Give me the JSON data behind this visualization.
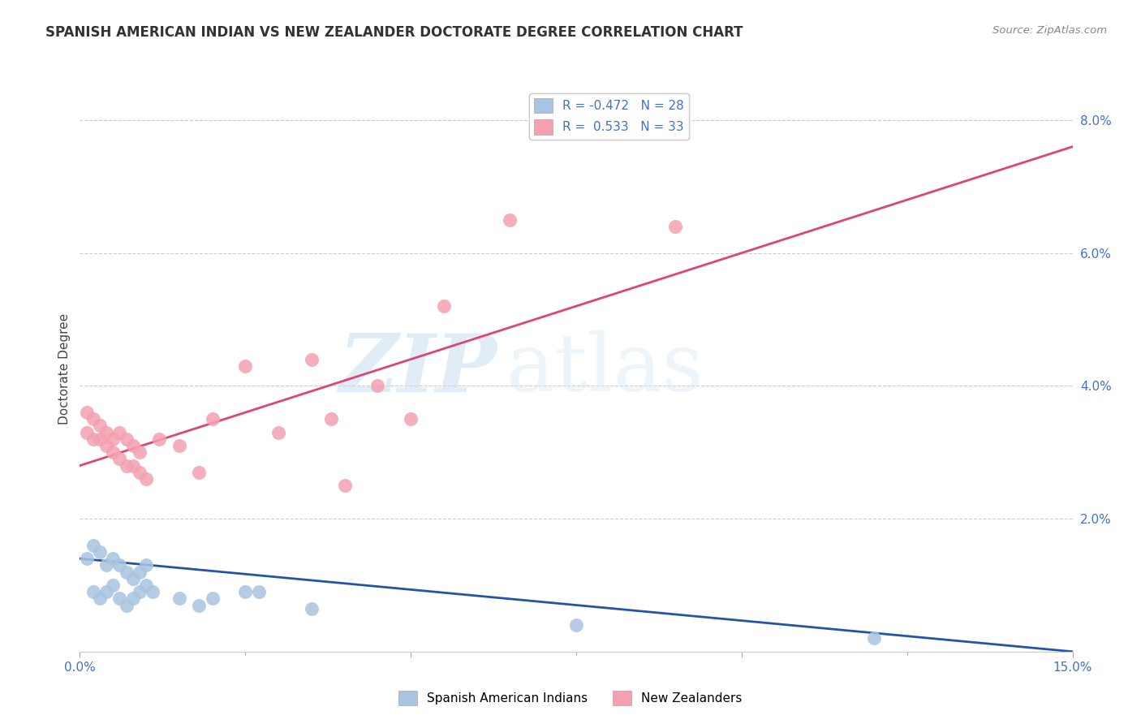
{
  "title": "SPANISH AMERICAN INDIAN VS NEW ZEALANDER DOCTORATE DEGREE CORRELATION CHART",
  "source": "Source: ZipAtlas.com",
  "ylabel": "Doctorate Degree",
  "xlim": [
    0.0,
    0.15
  ],
  "ylim": [
    0.0,
    0.085
  ],
  "xticks": [
    0.0,
    0.05,
    0.1,
    0.15
  ],
  "xtick_labels": [
    "0.0%",
    "",
    "",
    "15.0%"
  ],
  "yticks": [
    0.0,
    0.02,
    0.04,
    0.06,
    0.08
  ],
  "ytick_labels_right": [
    "",
    "2.0%",
    "4.0%",
    "6.0%",
    "8.0%"
  ],
  "legend_R1": "-0.472",
  "legend_N1": "28",
  "legend_R2": "0.533",
  "legend_N2": "33",
  "color_blue": "#a8c4e0",
  "color_pink": "#f4a0b0",
  "line_blue": "#2255aa",
  "line_pink": "#dd4477",
  "watermark_zip": "ZIP",
  "watermark_atlas": "atlas",
  "blue_scatter_x": [
    0.001,
    0.002,
    0.003,
    0.004,
    0.005,
    0.006,
    0.007,
    0.008,
    0.009,
    0.01,
    0.002,
    0.003,
    0.004,
    0.005,
    0.006,
    0.007,
    0.008,
    0.009,
    0.01,
    0.011,
    0.015,
    0.018,
    0.02,
    0.025,
    0.027,
    0.035,
    0.075,
    0.12
  ],
  "blue_scatter_y": [
    0.014,
    0.016,
    0.015,
    0.013,
    0.014,
    0.013,
    0.012,
    0.011,
    0.012,
    0.013,
    0.009,
    0.008,
    0.009,
    0.01,
    0.008,
    0.007,
    0.008,
    0.009,
    0.01,
    0.009,
    0.008,
    0.007,
    0.008,
    0.009,
    0.009,
    0.0065,
    0.004,
    0.002
  ],
  "pink_scatter_x": [
    0.001,
    0.002,
    0.003,
    0.004,
    0.005,
    0.006,
    0.007,
    0.008,
    0.009,
    0.01,
    0.001,
    0.002,
    0.003,
    0.004,
    0.005,
    0.006,
    0.007,
    0.008,
    0.009,
    0.012,
    0.015,
    0.018,
    0.02,
    0.025,
    0.03,
    0.035,
    0.038,
    0.04,
    0.045,
    0.05,
    0.055,
    0.065,
    0.09
  ],
  "pink_scatter_y": [
    0.033,
    0.032,
    0.032,
    0.031,
    0.03,
    0.029,
    0.028,
    0.028,
    0.027,
    0.026,
    0.036,
    0.035,
    0.034,
    0.033,
    0.032,
    0.033,
    0.032,
    0.031,
    0.03,
    0.032,
    0.031,
    0.027,
    0.035,
    0.043,
    0.033,
    0.044,
    0.035,
    0.025,
    0.04,
    0.035,
    0.052,
    0.065,
    0.064
  ],
  "blue_line_x0": 0.0,
  "blue_line_y0": 0.014,
  "blue_line_x1": 0.15,
  "blue_line_y1": 0.0,
  "pink_line_x0": 0.0,
  "pink_line_y0": 0.028,
  "pink_line_x1": 0.15,
  "pink_line_y1": 0.076
}
